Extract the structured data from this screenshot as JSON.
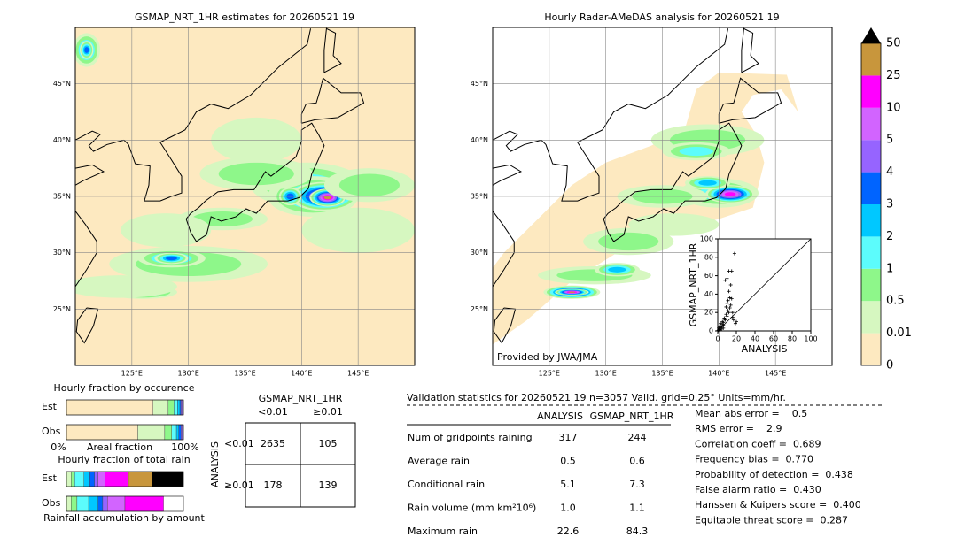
{
  "left_map": {
    "title": "GSMAP_NRT_1HR estimates for 20260521 19",
    "lat_labels": [
      "45°N",
      "40°N",
      "35°N",
      "30°N",
      "25°N"
    ],
    "lon_labels": [
      "125°E",
      "130°E",
      "135°E",
      "140°E",
      "145°E"
    ]
  },
  "right_map": {
    "title": "Hourly Radar-AMeDAS analysis for 20260521 19",
    "lat_labels": [
      "45°N",
      "40°N",
      "35°N",
      "30°N",
      "25°N"
    ],
    "lon_labels": [
      "125°E",
      "130°E",
      "135°E",
      "140°E",
      "145°E"
    ],
    "credit": "Provided by JWA/JMA"
  },
  "colorbar": {
    "ticks": [
      "0",
      "0.01",
      "0.5",
      "1",
      "2",
      "3",
      "4",
      "5",
      "10",
      "25",
      "50"
    ],
    "colors": [
      "#fde9c0",
      "#d6f7c0",
      "#8ef78a",
      "#5cfcfc",
      "#00c8ff",
      "#0064ff",
      "#9664ff",
      "#d264ff",
      "#ff00ff",
      "#c8963c",
      "#000000"
    ]
  },
  "chart_data": {
    "type": "scatter",
    "x_label": "ANALYSIS",
    "y_label": "GSMAP_NRT_1HR",
    "xlim": [
      0,
      100
    ],
    "ylim": [
      0,
      100
    ],
    "xticks": [
      0,
      20,
      40,
      60,
      80,
      100
    ],
    "yticks": [
      0,
      20,
      40,
      60,
      80,
      100
    ],
    "color": "#000000",
    "x": [
      18,
      12,
      15,
      10,
      8,
      14,
      12,
      15,
      10,
      13,
      11,
      9,
      16,
      7,
      5,
      3,
      2,
      1,
      4,
      6,
      8,
      10,
      12,
      14,
      9,
      11,
      6,
      3,
      2,
      1,
      5,
      7,
      13,
      17,
      20,
      0.5,
      1.5,
      2.5,
      4,
      6,
      16,
      19
    ],
    "y": [
      84,
      65,
      65,
      57,
      55,
      50,
      43,
      35,
      30,
      25,
      22,
      18,
      15,
      13,
      10,
      8,
      5,
      3,
      2,
      6,
      12,
      16,
      20,
      28,
      26,
      33,
      9,
      4,
      2,
      1,
      7,
      14,
      36,
      12,
      10,
      0.5,
      2,
      1,
      4,
      3,
      20,
      8
    ]
  },
  "occurrence": {
    "title": "Hourly fraction by occurence",
    "rows": [
      "Est",
      "Obs"
    ],
    "est": [
      0.74,
      0.13,
      0.05,
      0.03,
      0.02,
      0.01,
      0.01,
      0.01,
      0,
      0
    ],
    "obs": [
      0.61,
      0.23,
      0.06,
      0.04,
      0.02,
      0.02,
      0.01,
      0.01,
      0,
      0
    ],
    "axis_labels": [
      "0%",
      "Areal fraction",
      "100%"
    ]
  },
  "total_rain": {
    "title": "Hourly fraction of total rain",
    "rows": [
      "Est",
      "Obs"
    ],
    "est": [
      0,
      0.04,
      0.03,
      0.08,
      0.05,
      0.04,
      0.03,
      0.06,
      0.2,
      0.2,
      0.27
    ],
    "obs": [
      0,
      0.04,
      0.05,
      0.1,
      0.08,
      0.04,
      0.04,
      0.15,
      0.33,
      0,
      0
    ],
    "axis_label": "Rainfall accumulation by amount"
  },
  "contingency": {
    "title": "GSMAP_NRT_1HR",
    "col_labels": [
      "<0.01",
      "≥0.01"
    ],
    "row_title": "ANALYSIS",
    "row_labels": [
      "<0.01",
      "≥0.01"
    ],
    "cells": [
      [
        "2635",
        "105"
      ],
      [
        "178",
        "139"
      ]
    ]
  },
  "validation": {
    "title": "Validation statistics for 20260521 19  n=3057 Valid. grid=0.25° Units=mm/hr.",
    "col_headers": [
      "ANALYSIS",
      "GSMAP_NRT_1HR"
    ],
    "rows": [
      [
        "Num of gridpoints raining",
        "317",
        "244"
      ],
      [
        "Average rain",
        "0.5",
        "0.6"
      ],
      [
        "Conditional rain",
        "5.1",
        "7.3"
      ],
      [
        "Rain volume (mm km²10⁶)",
        "1.0",
        "1.1"
      ],
      [
        "Maximum rain",
        "22.6",
        "84.3"
      ]
    ],
    "scores": [
      "Mean abs error =    0.5",
      "RMS error =    2.9",
      "Correlation coeff =  0.689",
      "Frequency bias =  0.770",
      "Probability of detection =  0.438",
      "False alarm ratio =  0.430",
      "Hanssen & Kuipers score =  0.400",
      "Equitable threat score =  0.287"
    ]
  }
}
